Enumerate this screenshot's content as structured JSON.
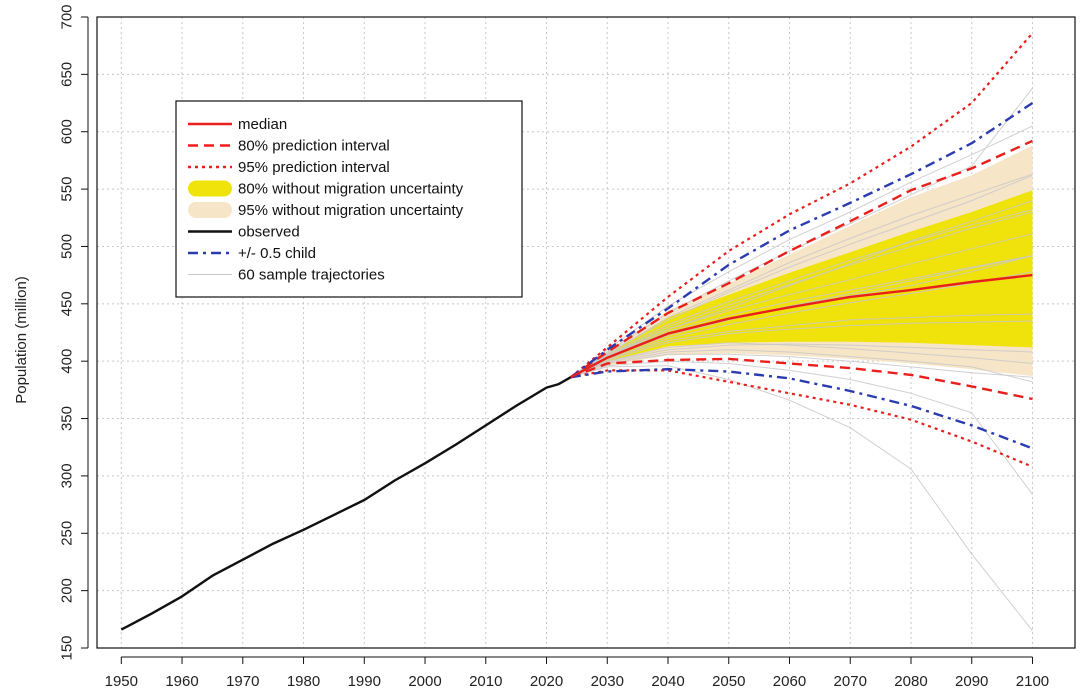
{
  "chart_data": {
    "type": "line",
    "title": "",
    "xlabel": "",
    "ylabel": "Population (million)",
    "xlim": [
      1946,
      2107
    ],
    "ylim": [
      150,
      700
    ],
    "x_ticks": [
      1950,
      1960,
      1970,
      1980,
      1990,
      2000,
      2010,
      2020,
      2030,
      2040,
      2050,
      2060,
      2070,
      2080,
      2090,
      2100
    ],
    "y_ticks": [
      150,
      200,
      250,
      300,
      350,
      400,
      450,
      500,
      550,
      600,
      650,
      700
    ],
    "grid": true,
    "legend_position": "top-left",
    "colors": {
      "median": "#e8201c",
      "pi80": "#e8201c",
      "pi95": "#e8201c",
      "band80": "#f0e30c",
      "band95": "#f7e5c8",
      "observed": "#111111",
      "half_child": "#2b3cb0",
      "trajectories": "#c8c8c8"
    },
    "legend": [
      {
        "label": "median",
        "key": "median",
        "style": "solid"
      },
      {
        "label": "80% prediction interval",
        "key": "pi80",
        "style": "dashed"
      },
      {
        "label": "95% prediction interval",
        "key": "pi95",
        "style": "dotted"
      },
      {
        "label": "80% without migration uncertainty",
        "key": "band80",
        "style": "band"
      },
      {
        "label": "95% without migration uncertainty",
        "key": "band95",
        "style": "band"
      },
      {
        "label": "observed",
        "key": "observed",
        "style": "solid"
      },
      {
        "label": "+/- 0.5 child",
        "key": "half_child",
        "style": "dashdot"
      },
      {
        "label": "60 sample trajectories",
        "key": "trajectories",
        "style": "thin"
      }
    ],
    "series": [
      {
        "key": "observed",
        "x": [
          1950,
          1955,
          1960,
          1965,
          1970,
          1975,
          1980,
          1985,
          1990,
          1995,
          2000,
          2005,
          2010,
          2015,
          2020,
          2022,
          2024
        ],
        "values": [
          166,
          180,
          195,
          213,
          227,
          241,
          253,
          266,
          279,
          296,
          311,
          327,
          344,
          361,
          377,
          380,
          386
        ]
      },
      {
        "key": "median",
        "x": [
          2024,
          2030,
          2040,
          2050,
          2060,
          2070,
          2080,
          2090,
          2100
        ],
        "values": [
          386,
          403,
          424,
          437,
          447,
          456,
          462,
          469,
          475
        ]
      },
      {
        "key": "pi80_upper",
        "x": [
          2024,
          2030,
          2040,
          2050,
          2060,
          2070,
          2080,
          2090,
          2100
        ],
        "values": [
          386,
          408,
          442,
          468,
          496,
          522,
          549,
          568,
          592
        ]
      },
      {
        "key": "pi80_lower",
        "x": [
          2024,
          2030,
          2040,
          2050,
          2060,
          2070,
          2080,
          2090,
          2100
        ],
        "values": [
          386,
          398,
          401,
          402,
          398,
          394,
          388,
          378,
          367
        ]
      },
      {
        "key": "pi95_upper",
        "x": [
          2024,
          2030,
          2040,
          2050,
          2060,
          2070,
          2080,
          2090,
          2100
        ],
        "values": [
          386,
          412,
          456,
          496,
          528,
          555,
          587,
          625,
          686
        ]
      },
      {
        "key": "pi95_lower",
        "x": [
          2024,
          2030,
          2040,
          2050,
          2060,
          2070,
          2080,
          2090,
          2100
        ],
        "values": [
          386,
          392,
          392,
          382,
          372,
          362,
          349,
          330,
          308
        ]
      },
      {
        "key": "half_child_upper",
        "x": [
          2024,
          2030,
          2040,
          2050,
          2060,
          2070,
          2080,
          2090,
          2100
        ],
        "values": [
          386,
          410,
          446,
          484,
          514,
          538,
          563,
          590,
          625
        ]
      },
      {
        "key": "half_child_lower",
        "x": [
          2024,
          2030,
          2040,
          2050,
          2060,
          2070,
          2080,
          2090,
          2100
        ],
        "values": [
          386,
          391,
          393,
          391,
          385,
          374,
          361,
          344,
          324
        ]
      },
      {
        "key": "band80_upper",
        "x": [
          2024,
          2030,
          2040,
          2050,
          2060,
          2070,
          2080,
          2090,
          2100
        ],
        "values": [
          386,
          406,
          438,
          458,
          477,
          495,
          513,
          530,
          549
        ]
      },
      {
        "key": "band80_lower",
        "x": [
          2024,
          2030,
          2040,
          2050,
          2060,
          2070,
          2080,
          2090,
          2100
        ],
        "values": [
          386,
          400,
          413,
          416,
          417,
          417,
          416,
          414,
          412
        ]
      },
      {
        "key": "band95_upper",
        "x": [
          2024,
          2030,
          2040,
          2050,
          2060,
          2070,
          2080,
          2090,
          2100
        ],
        "values": [
          386,
          409,
          444,
          468,
          493,
          518,
          543,
          562,
          588
        ]
      },
      {
        "key": "band95_lower",
        "x": [
          2024,
          2030,
          2040,
          2050,
          2060,
          2070,
          2080,
          2090,
          2100
        ],
        "values": [
          386,
          396,
          405,
          407,
          405,
          402,
          398,
          393,
          387
        ]
      }
    ],
    "sample_trajectories": {
      "count": 60,
      "x": [
        2024,
        2030,
        2040,
        2050,
        2060,
        2070,
        2080,
        2090,
        2100
      ],
      "shown": [
        [
          386,
          404,
          428,
          446,
          466,
          485,
          505,
          522,
          540
        ],
        [
          386,
          398,
          406,
          406,
          404,
          400,
          395,
          390,
          386
        ],
        [
          386,
          410,
          448,
          478,
          506,
          530,
          556,
          580,
          605
        ],
        [
          386,
          395,
          396,
          384,
          366,
          342,
          306,
          232,
          165
        ],
        [
          386,
          402,
          420,
          432,
          442,
          451,
          459,
          468,
          478
        ],
        [
          386,
          407,
          436,
          460,
          482,
          502,
          521,
          540,
          562
        ],
        [
          386,
          400,
          412,
          416,
          414,
          411,
          407,
          403,
          398
        ],
        [
          386,
          406,
          432,
          452,
          470,
          488,
          504,
          519,
          532
        ],
        [
          386,
          399,
          408,
          410,
          408,
          404,
          400,
          395,
          382
        ],
        [
          386,
          404,
          426,
          440,
          452,
          462,
          472,
          482,
          492
        ],
        [
          386,
          408,
          442,
          470,
          496,
          520,
          545,
          570,
          638
        ],
        [
          386,
          396,
          400,
          398,
          392,
          384,
          372,
          355,
          284
        ],
        [
          386,
          403,
          422,
          436,
          448,
          459,
          470,
          481,
          492
        ],
        [
          386,
          405,
          430,
          449,
          467,
          484,
          500,
          516,
          530
        ],
        [
          386,
          401,
          416,
          424,
          428,
          431,
          433,
          434,
          435
        ],
        [
          386,
          406,
          438,
          462,
          486,
          507,
          527,
          545,
          563
        ],
        [
          386,
          402,
          418,
          426,
          431,
          436,
          438,
          440,
          441
        ],
        [
          386,
          404,
          424,
          436,
          448,
          457,
          466,
          478,
          492
        ],
        [
          386,
          400,
          410,
          414,
          415,
          414,
          412,
          410,
          408
        ],
        [
          386,
          405,
          428,
          444,
          458,
          471,
          485,
          498,
          511
        ]
      ]
    }
  }
}
